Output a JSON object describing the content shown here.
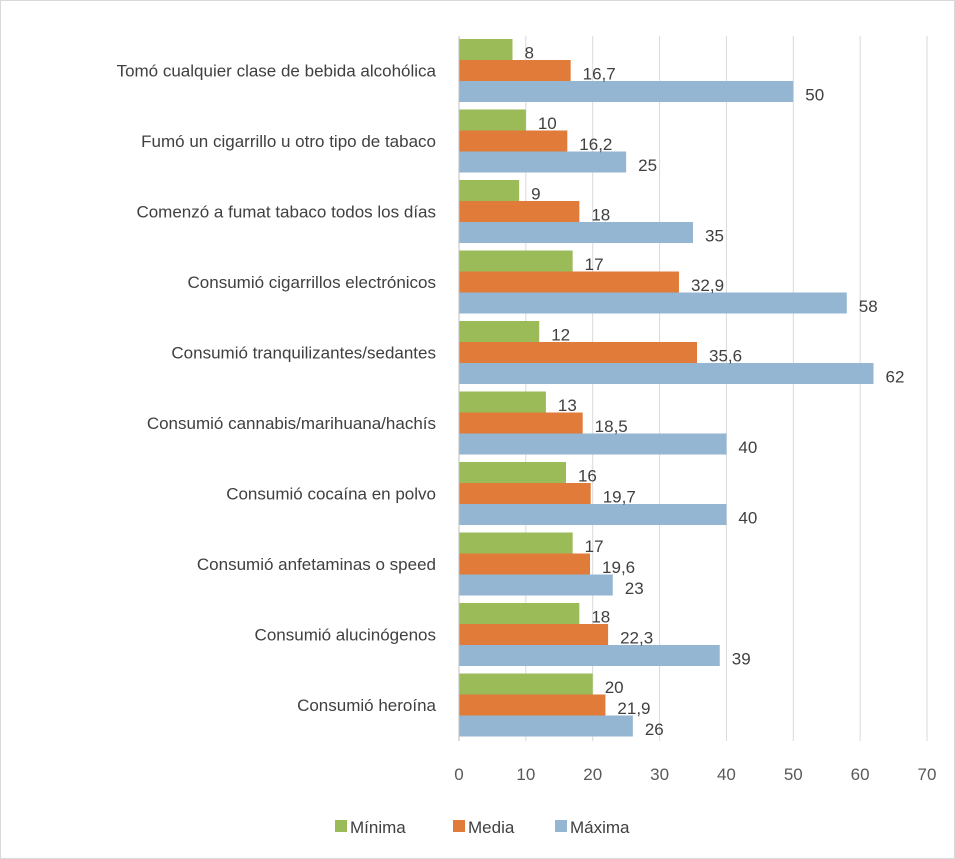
{
  "chart_data": {
    "type": "bar",
    "orientation": "horizontal",
    "title": "",
    "xlabel": "",
    "ylabel": "",
    "xlim": [
      0,
      70
    ],
    "xticks": [
      0,
      10,
      20,
      30,
      40,
      50,
      60,
      70
    ],
    "grid": true,
    "legend_position": "bottom",
    "categories": [
      "Tomó cualquier clase de bebida alcohólica",
      "Fumó un cigarrillo u otro tipo de tabaco",
      "Comenzó a fumat tabaco todos los días",
      "Consumió cigarrillos electrónicos",
      "Consumió tranquilizantes/sedantes",
      "Consumió cannabis/marihuana/hachís",
      "Consumió cocaína en polvo",
      "Consumió anfetaminas o speed",
      "Consumió alucinógenos",
      "Consumió heroína"
    ],
    "series": [
      {
        "name": "Mínima",
        "color": "#9bbb59",
        "values": [
          8,
          10,
          9,
          17,
          12,
          13,
          16,
          17,
          18,
          20
        ],
        "labels": [
          "8",
          "10",
          "9",
          "17",
          "12",
          "13",
          "16",
          "17",
          "18",
          "20"
        ]
      },
      {
        "name": "Media",
        "color": "#e07b39",
        "values": [
          16.7,
          16.2,
          18,
          32.9,
          35.6,
          18.5,
          19.7,
          19.6,
          22.3,
          21.9
        ],
        "labels": [
          "16,7",
          "16,2",
          "18",
          "32,9",
          "35,6",
          "18,5",
          "19,7",
          "19,6",
          "22,3",
          "21,9"
        ]
      },
      {
        "name": "Máxima",
        "color": "#94b6d2",
        "values": [
          50,
          25,
          35,
          58,
          62,
          40,
          40,
          23,
          39,
          26
        ],
        "labels": [
          "50",
          "25",
          "35",
          "58",
          "62",
          "40",
          "40",
          "23",
          "39",
          "26"
        ]
      }
    ]
  }
}
